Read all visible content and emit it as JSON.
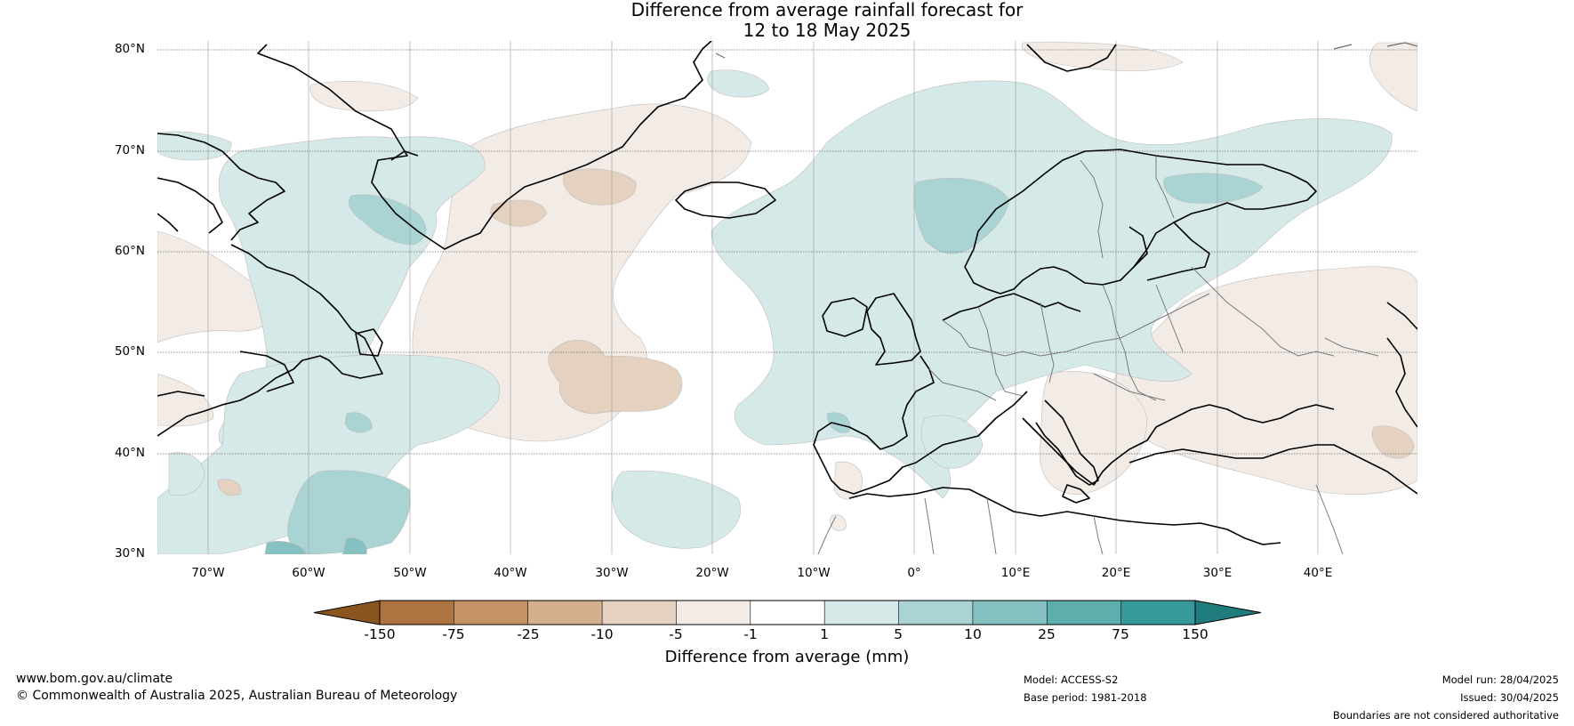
{
  "title": {
    "line1": "Difference from average rainfall forecast for",
    "line2": "12 to 18 May 2025"
  },
  "map": {
    "lat_labels": [
      "80°N",
      "70°N",
      "60°N",
      "50°N",
      "40°N",
      "30°N"
    ],
    "lon_labels": [
      "70°W",
      "60°W",
      "50°W",
      "40°W",
      "30°W",
      "20°W",
      "10°W",
      "0°",
      "10°E",
      "20°E",
      "30°E",
      "40°E"
    ]
  },
  "colorbar": {
    "ticks": [
      "-150",
      "-75",
      "-25",
      "-10",
      "-5",
      "-1",
      "1",
      "5",
      "10",
      "25",
      "75",
      "150"
    ],
    "label": "Difference from average (mm)",
    "colors": [
      "#8a551f",
      "#ad7442",
      "#c49467",
      "#d4b08e",
      "#e5d1bf",
      "#f3ece6",
      "#ffffff",
      "#d5e9e8",
      "#a9d4d3",
      "#84c1c0",
      "#5eaeae",
      "#36999a",
      "#217c7e"
    ]
  },
  "footer": {
    "website": "www.bom.gov.au/climate",
    "copyright": "© Commonwealth of Australia 2025, Australian Bureau of Meteorology",
    "model": "Model: ACCESS-S2",
    "base_period": "Base period: 1981-2018",
    "model_run": "Model run: 28/04/2025",
    "issued": "Issued: 30/04/2025",
    "disclaimer": "Boundaries are not considered authoritative"
  }
}
